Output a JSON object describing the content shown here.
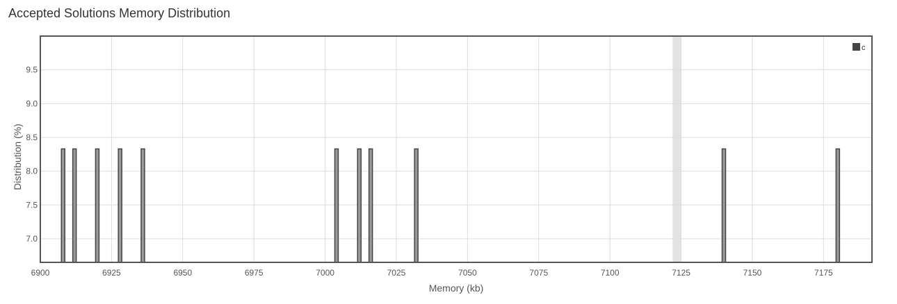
{
  "page": {
    "title": "Accepted Solutions Memory Distribution"
  },
  "chart_data": {
    "type": "bar",
    "title": "Accepted Solutions Memory Distribution",
    "xlabel": "Memory (kb)",
    "ylabel": "Distribution (%)",
    "xlim": [
      6900,
      7192
    ],
    "ylim": [
      6.65,
      10.0
    ],
    "x_ticks": [
      6900,
      6925,
      6950,
      6975,
      7000,
      7025,
      7050,
      7075,
      7100,
      7125,
      7150,
      7175
    ],
    "y_ticks": [
      7.0,
      7.5,
      8.0,
      8.5,
      9.0,
      9.5
    ],
    "grid": true,
    "legend_position": "top-right",
    "highlight_band": [
      7122,
      7125
    ],
    "series": [
      {
        "name": "c",
        "color": "#444444",
        "x": [
          6908,
          6912,
          6920,
          6928,
          6936,
          7004,
          7012,
          7016,
          7032,
          7140,
          7180
        ],
        "values": [
          8.33,
          8.33,
          8.33,
          8.33,
          8.33,
          8.33,
          8.33,
          8.33,
          8.33,
          8.33,
          8.33
        ]
      }
    ]
  }
}
